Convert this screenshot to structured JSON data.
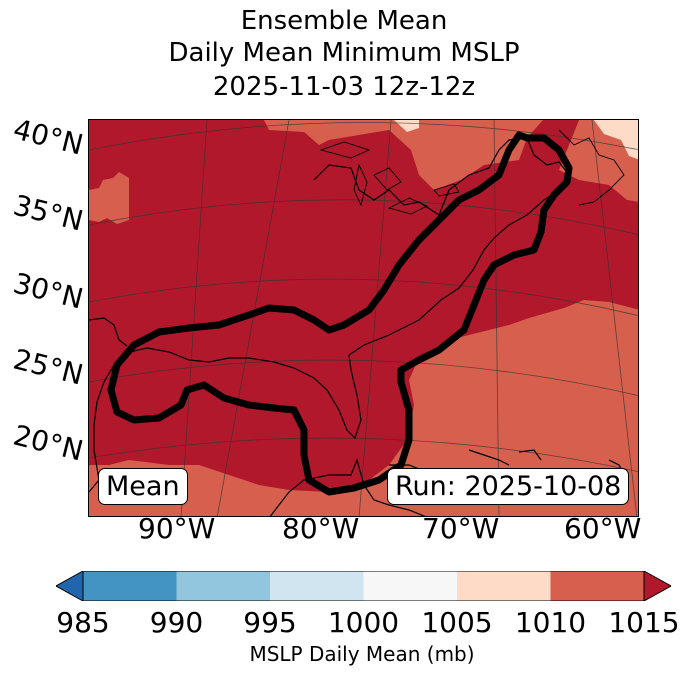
{
  "title": {
    "line1": "Ensemble Mean",
    "line2": "Daily Mean Minimum MSLP",
    "line3": "2025-11-03 12z-12z"
  },
  "lat_labels": [
    "40°N",
    "35°N",
    "30°N",
    "25°N",
    "20°N"
  ],
  "lon_labels": [
    "90°W",
    "80°W",
    "70°W",
    "60°W"
  ],
  "mean_box": "Mean",
  "run_box": "Run: 2025-10-08",
  "colorbar": {
    "label": "MSLP Daily Mean (mb)",
    "ticks": [
      "985",
      "990",
      "995",
      "1000",
      "1005",
      "1010",
      "1015"
    ],
    "colors": [
      "#2166ac",
      "#4393c3",
      "#92c5de",
      "#d1e5f0",
      "#f7f7f7",
      "#fddbc7",
      "#d6604d",
      "#b2182b"
    ]
  },
  "map_colors": {
    "low": "#b2182b",
    "mid": "#d6604d",
    "high": "#fddbc7",
    "land_line": "#000000",
    "contour": "#000000"
  }
}
